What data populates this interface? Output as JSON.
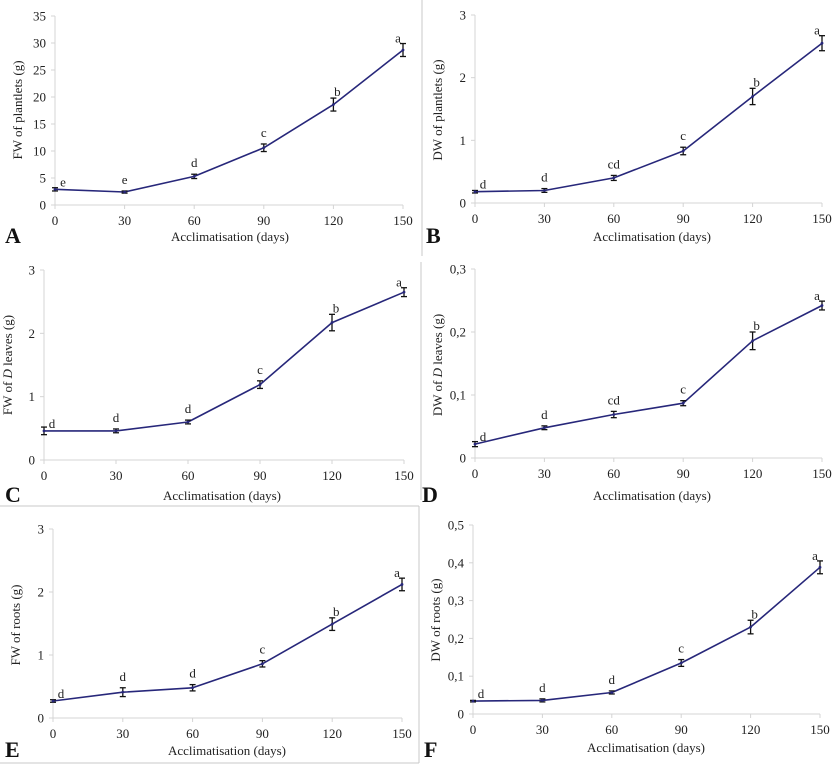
{
  "colors": {
    "line": "#27277a",
    "errorbar": "#111111",
    "axis": "#d4d4d4",
    "text": "#222222"
  },
  "chart_data": [
    {
      "panel": "A",
      "type": "line",
      "title": "",
      "xlabel": "Acclimatisation (days)",
      "ylabel": "FW of plantlets (g)",
      "ylabel_parts": [
        "FW of plantlets (g)"
      ],
      "x": [
        0,
        30,
        60,
        90,
        120,
        150
      ],
      "x_ticks": [
        "0",
        "30",
        "60",
        "90",
        "120",
        "150"
      ],
      "xlim": [
        0,
        150
      ],
      "ylim": [
        0,
        35
      ],
      "y_ticks": [
        0,
        5,
        10,
        15,
        20,
        25,
        30,
        35
      ],
      "y_tick_labels": [
        "0",
        "5",
        "10",
        "15",
        "20",
        "25",
        "30",
        "35"
      ],
      "series": [
        {
          "name": "FW of plantlets",
          "values": [
            2.9,
            2.4,
            5.3,
            10.6,
            18.6,
            28.7
          ],
          "errors": [
            0.3,
            0.2,
            0.4,
            0.7,
            1.2,
            1.2
          ]
        }
      ],
      "significance_letters": [
        "e",
        "e",
        "d",
        "c",
        "b",
        "a"
      ],
      "grid": false,
      "legend": "none"
    },
    {
      "panel": "B",
      "type": "line",
      "title": "",
      "xlabel": "Acclimatisation (days)",
      "ylabel": "DW of plantlets (g)",
      "ylabel_parts": [
        "DW of plantlets (g)"
      ],
      "x": [
        0,
        30,
        60,
        90,
        120,
        150
      ],
      "x_ticks": [
        "0",
        "30",
        "60",
        "90",
        "120",
        "150"
      ],
      "xlim": [
        0,
        150
      ],
      "ylim": [
        0,
        3
      ],
      "y_ticks": [
        0,
        1,
        2,
        3
      ],
      "y_tick_labels": [
        "0",
        "1",
        "2",
        "3"
      ],
      "series": [
        {
          "name": "DW of plantlets",
          "values": [
            0.18,
            0.2,
            0.4,
            0.83,
            1.7,
            2.55
          ],
          "errors": [
            0.02,
            0.03,
            0.04,
            0.06,
            0.13,
            0.12
          ]
        }
      ],
      "significance_letters": [
        "d",
        "d",
        "cd",
        "c",
        "b",
        "a"
      ],
      "grid": false,
      "legend": "none"
    },
    {
      "panel": "C",
      "type": "line",
      "title": "",
      "xlabel": "Acclimatisation (days)",
      "ylabel": "FW of D leaves (g)",
      "ylabel_parts": [
        "FW of ",
        "D",
        " leaves (g)"
      ],
      "x": [
        0,
        30,
        60,
        90,
        120,
        150
      ],
      "x_ticks": [
        "0",
        "30",
        "60",
        "90",
        "120",
        "150"
      ],
      "xlim": [
        0,
        150
      ],
      "ylim": [
        0,
        3
      ],
      "y_ticks": [
        0,
        1,
        2,
        3
      ],
      "y_tick_labels": [
        "0",
        "1",
        "2",
        "3"
      ],
      "series": [
        {
          "name": "FW of D leaves",
          "values": [
            0.46,
            0.46,
            0.6,
            1.19,
            2.17,
            2.65
          ],
          "errors": [
            0.06,
            0.03,
            0.03,
            0.06,
            0.13,
            0.07
          ]
        }
      ],
      "significance_letters": [
        "d",
        "d",
        "d",
        "c",
        "b",
        "a"
      ],
      "grid": false,
      "legend": "none"
    },
    {
      "panel": "D",
      "type": "line",
      "title": "",
      "xlabel": "Acclimatisation (days)",
      "ylabel": "DW of D leaves (g)",
      "ylabel_parts": [
        "DW of ",
        "D",
        " leaves (g)"
      ],
      "x": [
        0,
        30,
        60,
        90,
        120,
        150
      ],
      "x_ticks": [
        "0",
        "30",
        "60",
        "90",
        "120",
        "150"
      ],
      "xlim": [
        0,
        150
      ],
      "ylim": [
        0,
        0.3
      ],
      "y_ticks": [
        0,
        0.1,
        0.2,
        0.3
      ],
      "y_tick_labels": [
        "0",
        "0,1",
        "0,2",
        "0,3"
      ],
      "series": [
        {
          "name": "DW of D leaves",
          "values": [
            0.022,
            0.048,
            0.069,
            0.087,
            0.186,
            0.242
          ],
          "errors": [
            0.004,
            0.003,
            0.005,
            0.004,
            0.014,
            0.007
          ]
        }
      ],
      "significance_letters": [
        "d",
        "d",
        "cd",
        "c",
        "b",
        "a"
      ],
      "grid": false,
      "legend": "none"
    },
    {
      "panel": "E",
      "type": "line",
      "title": "",
      "xlabel": "Acclimatisation (days)",
      "ylabel": "FW of roots (g)",
      "ylabel_parts": [
        "FW of roots (g)"
      ],
      "x": [
        0,
        30,
        60,
        90,
        120,
        150
      ],
      "x_ticks": [
        "0",
        "30",
        "60",
        "90",
        "120",
        "150"
      ],
      "xlim": [
        0,
        150
      ],
      "ylim": [
        0,
        3
      ],
      "y_ticks": [
        0,
        1,
        2,
        3
      ],
      "y_tick_labels": [
        "0",
        "1",
        "2",
        "3"
      ],
      "series": [
        {
          "name": "FW of roots",
          "values": [
            0.27,
            0.41,
            0.48,
            0.86,
            1.49,
            2.12
          ],
          "errors": [
            0.02,
            0.07,
            0.05,
            0.05,
            0.1,
            0.1
          ]
        }
      ],
      "significance_letters": [
        "d",
        "d",
        "d",
        "c",
        "b",
        "a"
      ],
      "grid": false,
      "legend": "none"
    },
    {
      "panel": "F",
      "type": "line",
      "title": "",
      "xlabel": "Acclimatisation (days)",
      "ylabel": "DW of roots (g)",
      "ylabel_parts": [
        "DW of roots (g)"
      ],
      "x": [
        0,
        30,
        60,
        90,
        120,
        150
      ],
      "x_ticks": [
        "0",
        "30",
        "60",
        "90",
        "120",
        "150"
      ],
      "xlim": [
        0,
        150
      ],
      "ylim": [
        0,
        0.5
      ],
      "y_ticks": [
        0,
        0.1,
        0.2,
        0.3,
        0.4,
        0.5
      ],
      "y_tick_labels": [
        "0",
        "0,1",
        "0,2",
        "0,3",
        "0,4",
        "0,5"
      ],
      "series": [
        {
          "name": "DW of roots",
          "values": [
            0.034,
            0.036,
            0.057,
            0.135,
            0.23,
            0.388
          ],
          "errors": [
            0.002,
            0.004,
            0.004,
            0.009,
            0.018,
            0.017
          ]
        }
      ],
      "significance_letters": [
        "d",
        "d",
        "d",
        "c",
        "b",
        "a"
      ],
      "grid": false,
      "legend": "none"
    }
  ]
}
